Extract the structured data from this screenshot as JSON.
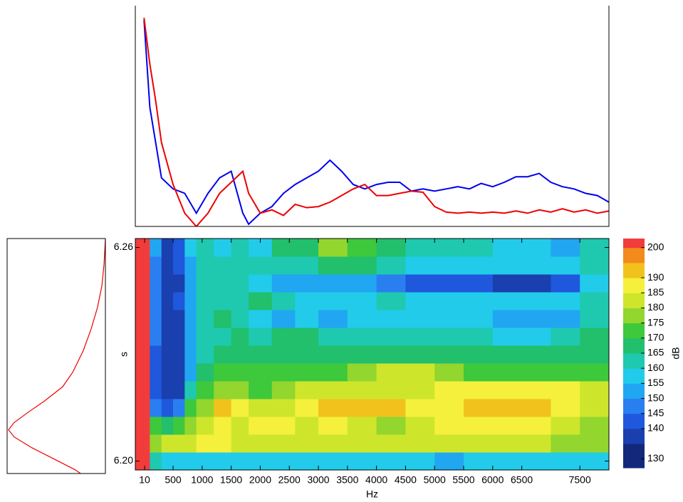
{
  "chart_data": [
    {
      "type": "line",
      "xlim": [
        -150,
        8000
      ],
      "ylim": [
        0,
        100
      ],
      "x": [
        0,
        100,
        200,
        300,
        500,
        700,
        900,
        1100,
        1300,
        1500,
        1700,
        1800,
        2000,
        2200,
        2400,
        2600,
        2800,
        3000,
        3200,
        3400,
        3600,
        3800,
        4000,
        4200,
        4400,
        4600,
        4800,
        5000,
        5200,
        5400,
        5600,
        5800,
        6000,
        6200,
        6400,
        6600,
        6800,
        7000,
        7200,
        7400,
        7600,
        7800,
        8000
      ],
      "series": [
        {
          "color": "#0000ee",
          "values": [
            93.5,
            54,
            38,
            22,
            17,
            15,
            6,
            15,
            22,
            25,
            6,
            1,
            6,
            9,
            15,
            19,
            22,
            25,
            30,
            25,
            19,
            17,
            19,
            20,
            20,
            16,
            17,
            16,
            17,
            18,
            17,
            19.5,
            18,
            20,
            22.5,
            22.5,
            24,
            20,
            18,
            17,
            15,
            14,
            11
          ]
        },
        {
          "color": "#ee0000",
          "values": [
            94.5,
            73.5,
            57,
            38,
            19,
            6,
            0,
            6,
            15,
            20,
            25,
            15,
            6,
            7.5,
            5,
            10,
            8.5,
            9,
            11,
            14,
            17,
            19,
            14,
            14,
            15,
            16,
            15.5,
            9,
            6.5,
            6,
            6.5,
            6,
            6.5,
            6,
            7,
            6,
            7.5,
            6.5,
            8,
            6.5,
            7.5,
            6,
            7
          ]
        }
      ]
    },
    {
      "type": "profile",
      "color": "#ee0000",
      "xlim": [
        0,
        100
      ],
      "ylim": [
        6.1975,
        6.2625
      ],
      "y": [
        6.2624,
        6.2554,
        6.2494,
        6.2435,
        6.2375,
        6.2315,
        6.2255,
        6.2215,
        6.2175,
        6.2145,
        6.2116,
        6.2096,
        6.2076,
        6.2046,
        6.2016,
        6.1986,
        6.1966
      ],
      "values": [
        100,
        98.6,
        96.4,
        92,
        85.5,
        77.5,
        66.7,
        56.5,
        37.7,
        21.7,
        7.2,
        1.4,
        7.2,
        25.4,
        47.1,
        68.8,
        79.7
      ]
    },
    {
      "type": "contour",
      "x_label": "Hz",
      "y_label": "s",
      "xlim": [
        -150,
        8000
      ],
      "ylim": [
        6.1975,
        6.2625
      ],
      "xticks": [
        10,
        500,
        1000,
        1500,
        2000,
        2500,
        3000,
        3500,
        4000,
        4500,
        5000,
        5500,
        6000,
        6500,
        7500
      ],
      "yticks": [
        {
          "value": 6.2,
          "label": "6.20"
        },
        6.26
      ],
      "x_edges": [
        -150,
        100,
        300,
        500,
        700,
        900,
        1200,
        1500,
        1800,
        2200,
        2600,
        3000,
        3500,
        4000,
        4500,
        5000,
        5500,
        6000,
        6500,
        7000,
        7500,
        8000
      ],
      "y_edges": [
        6.1975,
        6.2025,
        6.2075,
        6.2125,
        6.2175,
        6.2225,
        6.2275,
        6.2325,
        6.2375,
        6.2425,
        6.2475,
        6.2525,
        6.2575,
        6.2625
      ],
      "z": [
        [
          200,
          160,
          155,
          155,
          155,
          155,
          155,
          155,
          155,
          155,
          155,
          155,
          155,
          155,
          155,
          150,
          155,
          155,
          155,
          155,
          155
        ],
        [
          200,
          175,
          180,
          180,
          180,
          185,
          185,
          180,
          180,
          180,
          180,
          180,
          180,
          180,
          180,
          180,
          180,
          180,
          180,
          175,
          175
        ],
        [
          200,
          170,
          165,
          170,
          175,
          180,
          185,
          180,
          185,
          185,
          180,
          185,
          180,
          175,
          180,
          185,
          185,
          185,
          185,
          180,
          175
        ],
        [
          200,
          145,
          140,
          145,
          170,
          175,
          190,
          185,
          180,
          180,
          185,
          190,
          190,
          190,
          185,
          185,
          190,
          190,
          190,
          185,
          180
        ],
        [
          200,
          140,
          135,
          135,
          160,
          170,
          175,
          175,
          170,
          175,
          180,
          180,
          180,
          180,
          180,
          185,
          185,
          185,
          185,
          185,
          180
        ],
        [
          200,
          140,
          135,
          135,
          150,
          165,
          170,
          170,
          170,
          170,
          170,
          170,
          175,
          180,
          180,
          175,
          170,
          170,
          170,
          170,
          170
        ],
        [
          200,
          140,
          135,
          135,
          150,
          160,
          165,
          165,
          165,
          165,
          165,
          165,
          165,
          165,
          165,
          165,
          165,
          165,
          165,
          165,
          165
        ],
        [
          200,
          145,
          135,
          135,
          150,
          160,
          160,
          165,
          160,
          165,
          165,
          160,
          160,
          160,
          160,
          160,
          160,
          155,
          155,
          160,
          165
        ],
        [
          200,
          145,
          135,
          135,
          150,
          160,
          165,
          160,
          155,
          150,
          155,
          150,
          155,
          155,
          155,
          155,
          155,
          150,
          150,
          150,
          160
        ],
        [
          200,
          145,
          135,
          140,
          150,
          160,
          160,
          160,
          165,
          160,
          155,
          155,
          155,
          160,
          155,
          155,
          155,
          155,
          155,
          155,
          160
        ],
        [
          200,
          145,
          135,
          135,
          150,
          160,
          160,
          160,
          155,
          150,
          150,
          150,
          150,
          145,
          140,
          140,
          140,
          135,
          135,
          140,
          155
        ],
        [
          200,
          145,
          135,
          140,
          150,
          160,
          160,
          160,
          160,
          160,
          160,
          165,
          165,
          160,
          155,
          155,
          155,
          155,
          155,
          155,
          160
        ],
        [
          200,
          150,
          135,
          140,
          155,
          160,
          155,
          160,
          155,
          165,
          165,
          175,
          170,
          165,
          160,
          160,
          160,
          155,
          155,
          150,
          160
        ]
      ]
    },
    {
      "type": "colorbar",
      "label": "dB",
      "ylim": [
        127,
        203
      ],
      "levels": [
        127,
        135,
        140,
        145,
        150,
        155,
        160,
        165,
        170,
        175,
        180,
        185,
        190,
        195,
        200
      ],
      "colors": [
        "#13287a",
        "#1a3fae",
        "#1f58dc",
        "#2a7ff0",
        "#21a6f2",
        "#22cbea",
        "#1ec9b0",
        "#22bf6c",
        "#3ec83c",
        "#92d62e",
        "#cde62c",
        "#f4f03c",
        "#f2c21c",
        "#f28a1c",
        "#f23c3c"
      ],
      "yticks": [
        130,
        140,
        145,
        150,
        155,
        160,
        165,
        170,
        175,
        180,
        185,
        190,
        200
      ]
    }
  ]
}
